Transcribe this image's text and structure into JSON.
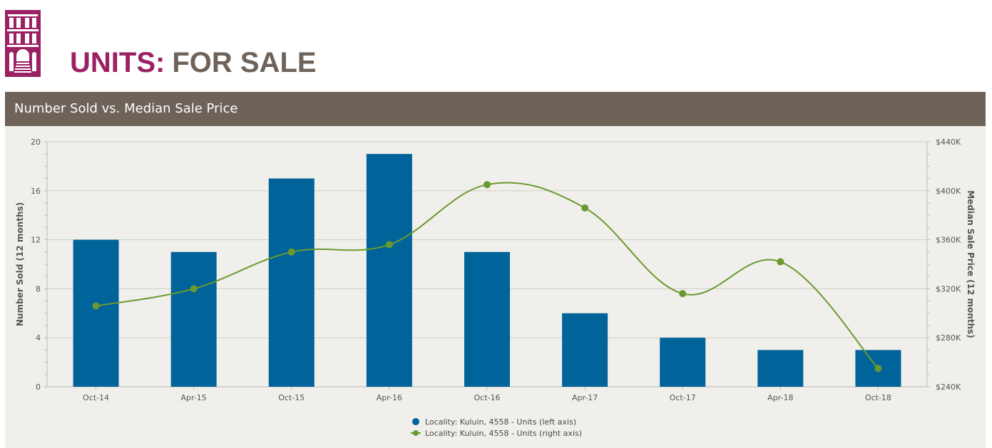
{
  "header": {
    "title_accent": "UNITS:",
    "title_main": "FOR SALE",
    "logo_icon": "building-icon",
    "accent_color": "#9b2163",
    "brown_color": "#6e6259"
  },
  "panel": {
    "title": "Number Sold vs. Median Sale Price"
  },
  "chart_data": {
    "type": "bar",
    "categories": [
      "Oct-14",
      "Apr-15",
      "Oct-15",
      "Apr-16",
      "Oct-16",
      "Apr-17",
      "Oct-17",
      "Apr-18",
      "Oct-18"
    ],
    "series": [
      {
        "name": "Locality: Kuluin, 4558 - Units (left axis)",
        "type": "bar",
        "axis": "left",
        "color": "#00639a",
        "values": [
          12,
          11,
          17,
          19,
          11,
          6,
          4,
          3,
          3
        ]
      },
      {
        "name": "Locality: Kuluin, 4558 - Units (right axis)",
        "type": "line",
        "axis": "right",
        "color": "#6a9a2f",
        "values": [
          306000,
          320000,
          350000,
          356000,
          405000,
          386000,
          316000,
          342000,
          255000
        ]
      }
    ],
    "y_left": {
      "label": "Number Sold (12 months)",
      "range": [
        0,
        20
      ],
      "ticks": [
        0,
        4,
        8,
        12,
        16,
        20
      ],
      "tick_labels": [
        "0",
        "4",
        "8",
        "12",
        "16",
        "20"
      ]
    },
    "y_right": {
      "label": "Median Sale Price (12 months)",
      "range": [
        240000,
        440000
      ],
      "ticks": [
        240000,
        280000,
        320000,
        360000,
        400000,
        440000
      ],
      "tick_labels": [
        "$240K",
        "$280K",
        "$320K",
        "$360K",
        "$400K",
        "$440K"
      ]
    },
    "grid": true,
    "legend_position": "bottom-center"
  }
}
